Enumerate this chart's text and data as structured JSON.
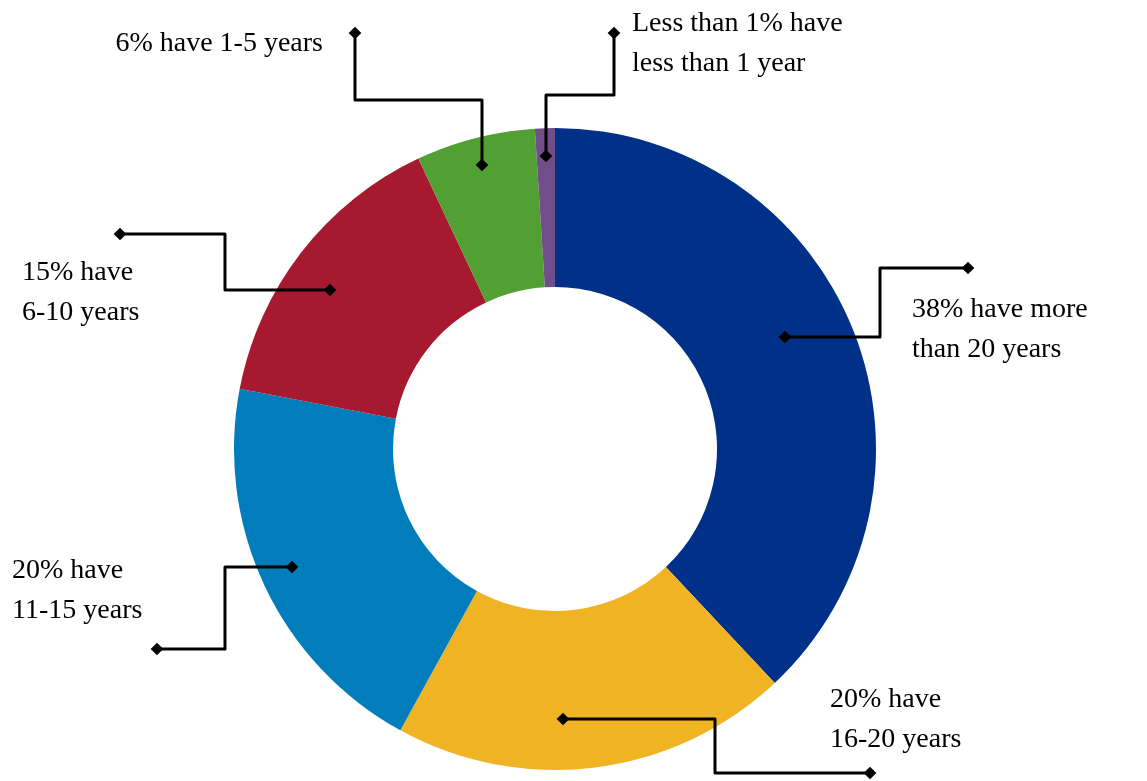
{
  "chart_data": {
    "type": "donut",
    "categories": [
      "38% have more than 20 years",
      "20% have 16-20 years",
      "20% have 11-15 years",
      "15% have 6-10 years",
      "6% have 1-5 years",
      "Less than 1% have less than 1 year"
    ],
    "values": [
      38,
      20,
      20,
      15,
      6,
      1
    ],
    "colors": [
      "#003087",
      "#f0b323",
      "#007dba",
      "#a6192e",
      "#52a033",
      "#6f4e8a"
    ]
  }
}
